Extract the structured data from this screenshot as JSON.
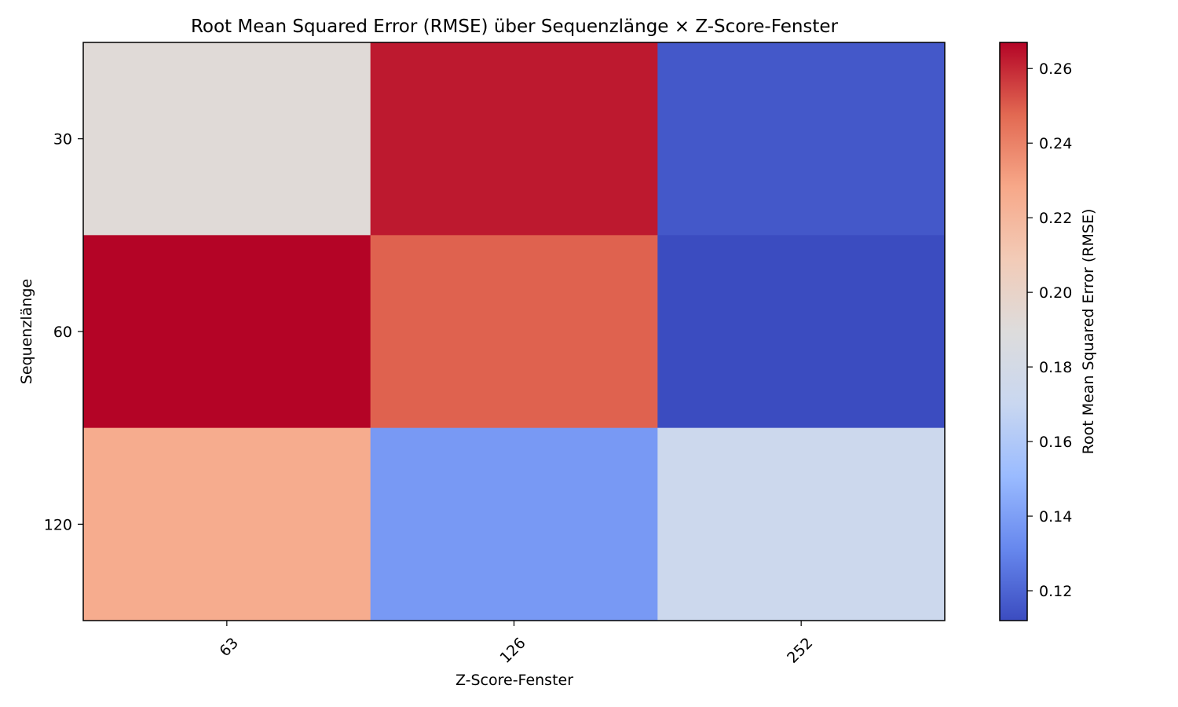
{
  "chart_data": {
    "type": "heatmap",
    "title": "Root Mean Squared Error (RMSE) über Sequenzlänge × Z-Score-Fenster",
    "xlabel": "Z-Score-Fenster",
    "ylabel": "Sequenzlänge",
    "x_categories": [
      "63",
      "126",
      "252"
    ],
    "y_categories": [
      "30",
      "60",
      "120"
    ],
    "values": [
      [
        0.192,
        0.263,
        0.116
      ],
      [
        0.267,
        0.249,
        0.112
      ],
      [
        0.226,
        0.138,
        0.173
      ]
    ],
    "colorbar": {
      "label": "Root Mean Squared Error (RMSE)",
      "vmin": 0.112,
      "vmax": 0.267,
      "ticks": [
        0.12,
        0.14,
        0.16,
        0.18,
        0.2,
        0.22,
        0.24,
        0.26
      ],
      "tick_labels": [
        "0.12",
        "0.14",
        "0.16",
        "0.18",
        "0.20",
        "0.22",
        "0.24",
        "0.26"
      ]
    },
    "colormap": "coolwarm",
    "colormap_stops": [
      "#3b4cc0",
      "#6788ee",
      "#9abbff",
      "#c9d7f0",
      "#dddcdc",
      "#f2cbb7",
      "#f7a889",
      "#e26952",
      "#b40426"
    ],
    "grid": false,
    "legend": "none"
  }
}
